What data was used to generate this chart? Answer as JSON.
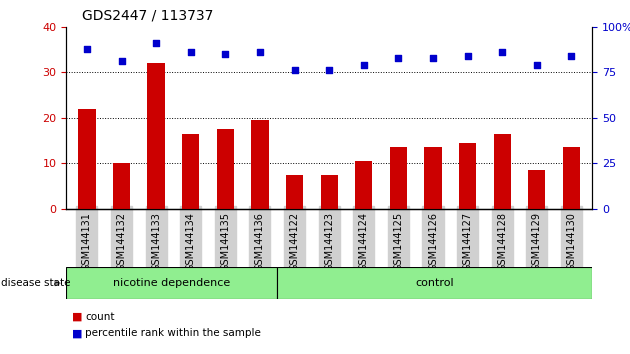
{
  "title": "GDS2447 / 113737",
  "categories": [
    "GSM144131",
    "GSM144132",
    "GSM144133",
    "GSM144134",
    "GSM144135",
    "GSM144136",
    "GSM144122",
    "GSM144123",
    "GSM144124",
    "GSM144125",
    "GSM144126",
    "GSM144127",
    "GSM144128",
    "GSM144129",
    "GSM144130"
  ],
  "counts": [
    22,
    10,
    32,
    16.5,
    17.5,
    19.5,
    7.5,
    7.5,
    10.5,
    13.5,
    13.5,
    14.5,
    16.5,
    8.5,
    13.5
  ],
  "percentiles_left_scale": [
    35,
    32.5,
    36.5,
    34.5,
    34,
    34.5,
    30.5,
    30.5,
    31.5,
    33,
    33,
    33.5,
    34.5,
    31.5,
    33.5
  ],
  "bar_color": "#CC0000",
  "dot_color": "#0000CC",
  "group1_label": "nicotine dependence",
  "group1_count": 6,
  "group2_label": "control",
  "group2_count": 9,
  "group_label_prefix": "disease state",
  "group_bg": "#90EE90",
  "ylim_left": [
    0,
    40
  ],
  "ylim_right": [
    0,
    100
  ],
  "yticks_left": [
    0,
    10,
    20,
    30,
    40
  ],
  "yticks_right": [
    0,
    25,
    50,
    75,
    100
  ],
  "legend_count_label": "count",
  "legend_percentile_label": "percentile rank within the sample",
  "background_color": "#ffffff",
  "ticklabel_bg": "#d0d0d0"
}
